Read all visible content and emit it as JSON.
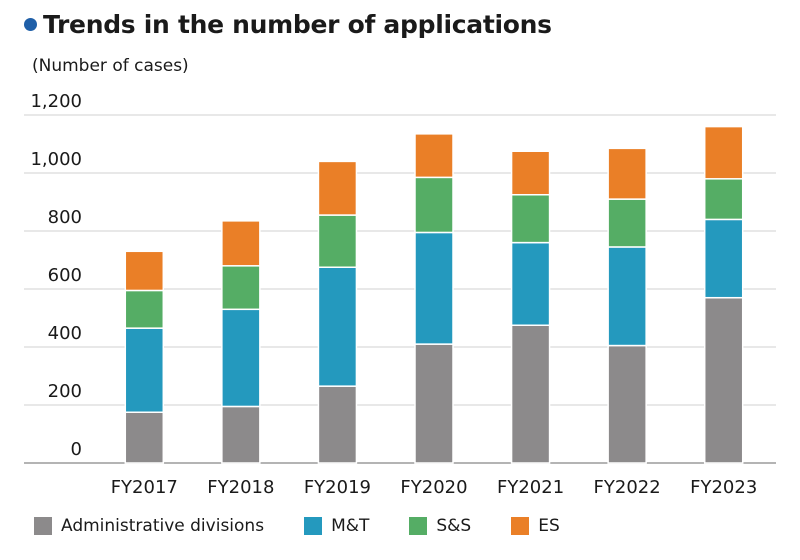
{
  "header": {
    "title": "Trends in the number of applications",
    "unit_label": "(Number of cases)"
  },
  "colors": {
    "title_dot": "#1f5fa8",
    "grid": "#d0d0d0",
    "axis": "#888888"
  },
  "chart_data": {
    "type": "bar",
    "stacked": true,
    "title": "Trends in the number of applications",
    "ylabel": "(Number of cases)",
    "xlabel": "",
    "ylim": [
      0,
      1200
    ],
    "yticks": [
      0,
      200,
      400,
      600,
      800,
      1000,
      1200
    ],
    "yticklabels": [
      "0",
      "200",
      "400",
      "600",
      "800",
      "1,000",
      "1,200"
    ],
    "grid": true,
    "legend_position": "bottom",
    "categories": [
      "FY2017",
      "FY2018",
      "FY2019",
      "FY2020",
      "FY2021",
      "FY2022",
      "FY2023"
    ],
    "series": [
      {
        "name": "Administrative divisions",
        "color": "#8c8a8b",
        "values": [
          175,
          195,
          265,
          410,
          475,
          405,
          570
        ]
      },
      {
        "name": "M&T",
        "color": "#2499be",
        "values": [
          290,
          335,
          410,
          385,
          285,
          340,
          270
        ]
      },
      {
        "name": "S&S",
        "color": "#55ad65",
        "values": [
          130,
          150,
          180,
          190,
          165,
          165,
          140
        ]
      },
      {
        "name": "ES",
        "color": "#ea7f27",
        "values": [
          135,
          155,
          185,
          150,
          150,
          175,
          180
        ]
      }
    ]
  }
}
